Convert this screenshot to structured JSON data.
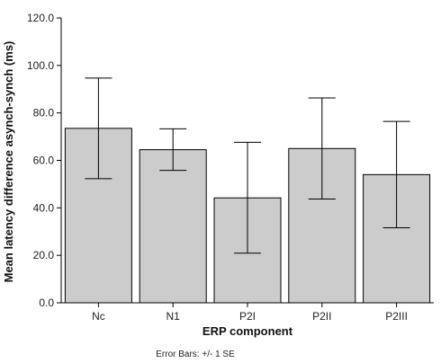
{
  "chart_data": {
    "type": "bar",
    "title": "",
    "xlabel": "ERP component",
    "ylabel": "Mean latency difference asynch-synch (ms)",
    "categories": [
      "Nc",
      "N1",
      "P2I",
      "P2II",
      "P2III"
    ],
    "values": [
      73.5,
      64.5,
      44.2,
      65.0,
      54.0
    ],
    "error_lower": [
      52.3,
      55.8,
      20.9,
      43.7,
      31.6
    ],
    "error_upper": [
      94.7,
      73.3,
      67.6,
      86.3,
      76.4
    ],
    "ylim": [
      0,
      120
    ],
    "yticks": [
      0,
      20,
      40,
      60,
      80,
      100,
      120
    ],
    "ytick_labels": [
      "0.0",
      "20.0",
      "40.0",
      "60.0",
      "80.0",
      "100.0",
      "120.0"
    ],
    "grid": false,
    "bar_color": "#cccccc",
    "bar_edge_color": "#000000",
    "footnote": "Error Bars: +/- 1 SE"
  }
}
